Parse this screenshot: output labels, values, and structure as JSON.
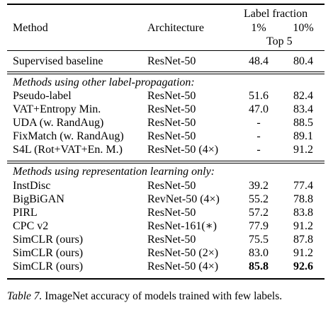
{
  "table": {
    "header": {
      "method": "Method",
      "architecture": "Architecture",
      "label_fraction": "Label fraction",
      "frac_1": "1%",
      "frac_10": "10%",
      "metric": "Top 5"
    },
    "baseline": {
      "method": "Supervised baseline",
      "architecture": "ResNet-50",
      "v1": "48.4",
      "v10": "80.4"
    },
    "section1_title": "Methods using other label-propagation:",
    "section1_rows": [
      {
        "method": "Pseudo-label",
        "architecture": "ResNet-50",
        "v1": "51.6",
        "v10": "82.4"
      },
      {
        "method": "VAT+Entropy Min.",
        "architecture": "ResNet-50",
        "v1": "47.0",
        "v10": "83.4"
      },
      {
        "method": "UDA (w. RandAug)",
        "architecture": "ResNet-50",
        "v1": "-",
        "v10": "88.5"
      },
      {
        "method": "FixMatch (w. RandAug)",
        "architecture": "ResNet-50",
        "v1": "-",
        "v10": "89.1"
      },
      {
        "method": "S4L (Rot+VAT+En. M.)",
        "architecture": "ResNet-50 (4×)",
        "v1": "-",
        "v10": "91.2"
      }
    ],
    "section2_title": "Methods using representation learning only:",
    "section2_rows": [
      {
        "method": "InstDisc",
        "architecture": "ResNet-50",
        "v1": "39.2",
        "v10": "77.4"
      },
      {
        "method": "BigBiGAN",
        "architecture": "RevNet-50 (4×)",
        "v1": "55.2",
        "v10": "78.8"
      },
      {
        "method": "PIRL",
        "architecture": "ResNet-50",
        "v1": "57.2",
        "v10": "83.8"
      },
      {
        "method": "CPC v2",
        "architecture": "ResNet-161(∗)",
        "v1": "77.9",
        "v10": "91.2"
      },
      {
        "method": "SimCLR (ours)",
        "architecture": "ResNet-50",
        "v1": "75.5",
        "v10": "87.8"
      },
      {
        "method": "SimCLR (ours)",
        "architecture": "ResNet-50 (2×)",
        "v1": "83.0",
        "v10": "91.2"
      },
      {
        "method": "SimCLR (ours)",
        "architecture": "ResNet-50 (4×)",
        "v1": "85.8",
        "v10": "92.6"
      }
    ]
  },
  "caption": {
    "label": "Table 7.",
    "text": " ImageNet accuracy of models trained with few labels."
  }
}
